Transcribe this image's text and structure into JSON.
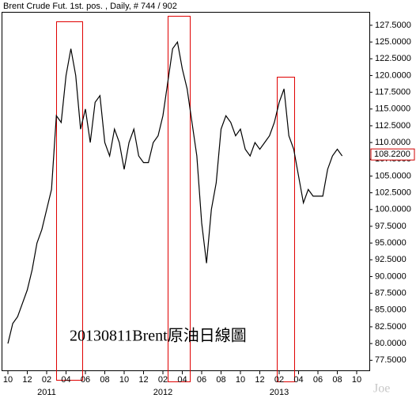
{
  "chart_data": {
    "type": "line",
    "title": "Brent Crude Fut. 1st. pos. , Daily, # 744 / 902",
    "annotation": "20130811Brent原油日線圖",
    "watermark": "Joe",
    "color": "#000000",
    "categories": [
      "10",
      null,
      null,
      null,
      "12",
      null,
      null,
      null,
      "02",
      null,
      null,
      null,
      "04",
      null,
      null,
      null,
      "06",
      null,
      null,
      null,
      "08",
      null,
      null,
      null,
      "10",
      null,
      null,
      null,
      "12",
      null,
      null,
      null,
      "02",
      null,
      null,
      null,
      "04",
      null,
      null,
      null,
      "06",
      null,
      null,
      null,
      "08",
      null,
      null,
      null,
      "10",
      null,
      null,
      null,
      "12",
      null,
      null,
      null,
      "02",
      null,
      null,
      null,
      "04",
      null,
      null,
      null,
      "06",
      null,
      null,
      null,
      "08",
      null,
      null,
      null,
      "10",
      null
    ],
    "year_labels": [
      null,
      null,
      null,
      null,
      null,
      null,
      null,
      null,
      "2011",
      null,
      null,
      null,
      null,
      null,
      null,
      null,
      null,
      null,
      null,
      null,
      null,
      null,
      null,
      null,
      null,
      null,
      null,
      null,
      null,
      null,
      null,
      null,
      "2012",
      null,
      null,
      null,
      null,
      null,
      null,
      null,
      null,
      null,
      null,
      null,
      null,
      null,
      null,
      null,
      null,
      null,
      null,
      null,
      null,
      null,
      null,
      null,
      "2013",
      null,
      null,
      null,
      null,
      null,
      null,
      null,
      null,
      null,
      null,
      null,
      null,
      null,
      null,
      null,
      null,
      null
    ],
    "values": [
      80,
      83,
      84,
      86,
      88,
      91,
      95,
      97,
      100,
      103,
      114,
      113,
      120,
      124,
      120,
      112,
      115,
      110,
      116,
      117,
      110,
      108,
      112,
      110,
      106,
      110,
      112,
      108,
      107,
      107,
      110,
      111,
      114,
      119,
      124,
      125,
      121,
      118,
      113,
      108,
      98,
      92,
      100,
      104,
      112,
      114,
      113,
      111,
      112,
      109,
      108,
      110,
      109,
      110,
      111,
      113,
      116,
      118,
      111,
      109,
      105,
      101,
      103,
      102,
      102,
      102,
      106,
      108,
      109,
      108,
      null,
      null,
      null,
      null
    ],
    "last_price": {
      "value": 108.22,
      "label": "108.2200"
    },
    "ylim": [
      76,
      129.5
    ],
    "yticks": [
      {
        "value": 77.5,
        "label": "77.5000"
      },
      {
        "value": 80,
        "label": "80.0000"
      },
      {
        "value": 82.5,
        "label": "82.5000"
      },
      {
        "value": 85,
        "label": "85.0000"
      },
      {
        "value": 87.5,
        "label": "87.5000"
      },
      {
        "value": 90,
        "label": "90.0000"
      },
      {
        "value": 92.5,
        "label": "92.5000"
      },
      {
        "value": 95,
        "label": "95.0000"
      },
      {
        "value": 97.5,
        "label": "97.5000"
      },
      {
        "value": 100,
        "label": "100.0000"
      },
      {
        "value": 102.5,
        "label": "102.5000"
      },
      {
        "value": 105,
        "label": "105.0000"
      },
      {
        "value": 107.5,
        "label": "107.5000"
      },
      {
        "value": 110,
        "label": "110.0000"
      },
      {
        "value": 112.5,
        "label": "112.5000"
      },
      {
        "value": 115,
        "label": "115.0000"
      },
      {
        "value": 117.5,
        "label": "117.5000"
      },
      {
        "value": 120,
        "label": "120.0000"
      },
      {
        "value": 122.5,
        "label": "122.5000"
      },
      {
        "value": 125,
        "label": "125.0000"
      },
      {
        "value": 127.5,
        "label": "127.5000"
      }
    ],
    "grid": false
  }
}
